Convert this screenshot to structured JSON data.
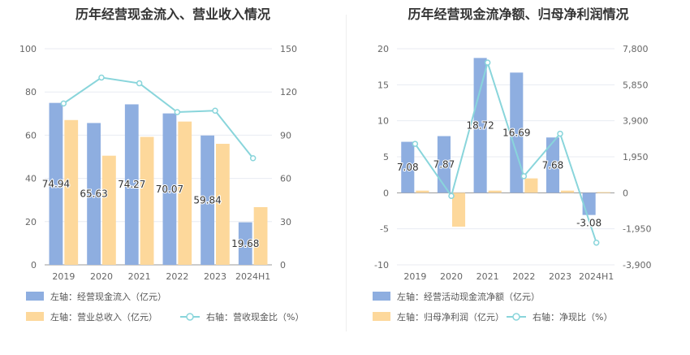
{
  "chart_data": [
    {
      "type": "bar",
      "title": "历年经营现金流入、营业收入情况",
      "categories": [
        "2019",
        "2020",
        "2021",
        "2022",
        "2023",
        "2024H1"
      ],
      "left_axis": {
        "ticks": [
          "0",
          "20",
          "40",
          "60",
          "80",
          "100"
        ],
        "ylim": [
          0,
          100
        ]
      },
      "right_axis": {
        "ticks": [
          "0",
          "30",
          "60",
          "90",
          "120",
          "150"
        ],
        "ylim": [
          0,
          150
        ]
      },
      "grid": true,
      "legend_position": "bottom",
      "series": [
        {
          "name": "左轴：经营现金流入（亿元）",
          "kind": "bar",
          "axis": "left",
          "color": "#8eaee0",
          "values": [
            74.94,
            65.63,
            74.27,
            70.07,
            59.84,
            19.68
          ],
          "labels": [
            "74.94",
            "65.63",
            "74.27",
            "70.07",
            "59.84",
            "19.68"
          ]
        },
        {
          "name": "左轴：营业总收入（亿元）",
          "kind": "bar",
          "axis": "left",
          "color": "#fdd89b",
          "values": [
            67,
            50.5,
            59.2,
            66.3,
            56,
            26.7
          ]
        },
        {
          "name": "右轴：营收现金比（%）",
          "kind": "line",
          "axis": "right",
          "color": "#89d5db",
          "values": [
            112,
            130,
            126,
            106,
            107,
            74
          ]
        }
      ]
    },
    {
      "type": "bar",
      "title": "历年经营现金流净额、归母净利润情况",
      "categories": [
        "2019",
        "2020",
        "2021",
        "2022",
        "2023",
        "2024H1"
      ],
      "left_axis": {
        "ticks": [
          "-10",
          "-5",
          "0",
          "5",
          "10",
          "15",
          "20"
        ],
        "ylim": [
          -10,
          20
        ]
      },
      "right_axis": {
        "ticks": [
          "-3,900",
          "-1,950",
          "0",
          "1,950",
          "3,900",
          "5,850",
          "7,800"
        ],
        "ylim": [
          -3900,
          7800
        ]
      },
      "grid": true,
      "legend_position": "bottom",
      "series": [
        {
          "name": "左轴：经营活动现金流净额（亿元）",
          "kind": "bar",
          "axis": "left",
          "color": "#8eaee0",
          "values": [
            7.08,
            7.87,
            18.72,
            16.69,
            7.68,
            -3.08
          ],
          "labels": [
            "7.08",
            "7.87",
            "18.72",
            "16.69",
            "7.68",
            "-3.08"
          ]
        },
        {
          "name": "左轴：归母净利润（亿元）",
          "kind": "bar",
          "axis": "left",
          "color": "#fdd89b",
          "values": [
            0.3,
            -4.7,
            0.3,
            2.0,
            0.3,
            0.1
          ]
        },
        {
          "name": "右轴：净现比（%）",
          "kind": "line",
          "axis": "right",
          "color": "#89d5db",
          "values": [
            2650,
            -170,
            7050,
            900,
            3200,
            -2700
          ]
        }
      ]
    }
  ]
}
